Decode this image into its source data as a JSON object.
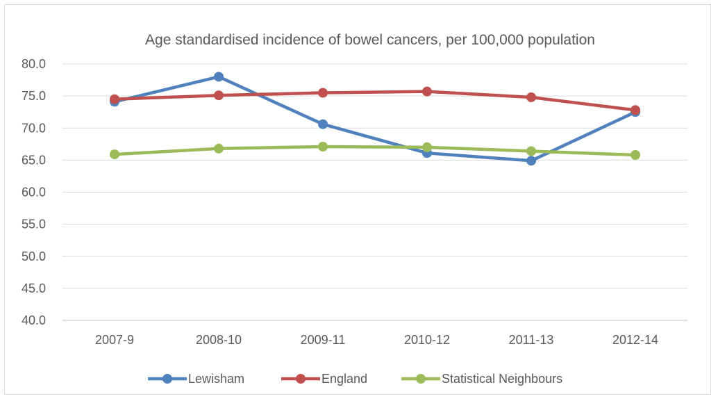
{
  "chart_data": {
    "type": "line",
    "title": "Age standardised incidence of bowel cancers, per 100,000 population",
    "xlabel": "",
    "ylabel": "",
    "categories": [
      "2007-9",
      "2008-10",
      "2009-11",
      "2010-12",
      "2011-13",
      "2012-14"
    ],
    "ylim": [
      40.0,
      80.0
    ],
    "yticks": [
      "80.0",
      "75.0",
      "70.0",
      "65.0",
      "60.0",
      "55.0",
      "50.0",
      "45.0",
      "40.0"
    ],
    "grid": "horizontal",
    "legend_position": "bottom",
    "series": [
      {
        "name": "Lewisham",
        "color": "#4f81bd",
        "values": [
          74.1,
          78.0,
          70.6,
          66.1,
          64.9,
          72.5
        ]
      },
      {
        "name": "England",
        "color": "#c0504d",
        "values": [
          74.5,
          75.1,
          75.5,
          75.7,
          74.8,
          72.8
        ]
      },
      {
        "name": "Statistical Neighbours",
        "color": "#9bbb59",
        "values": [
          65.9,
          66.8,
          67.1,
          67.0,
          66.4,
          65.8
        ]
      }
    ]
  }
}
